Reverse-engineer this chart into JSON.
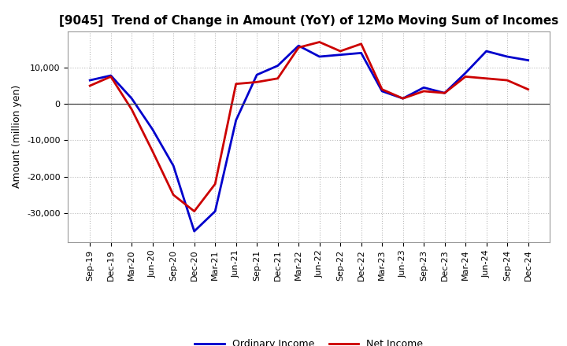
{
  "title": "[9045]  Trend of Change in Amount (YoY) of 12Mo Moving Sum of Incomes",
  "ylabel": "Amount (million yen)",
  "x_labels": [
    "Sep-19",
    "Dec-19",
    "Mar-20",
    "Jun-20",
    "Sep-20",
    "Dec-20",
    "Mar-21",
    "Jun-21",
    "Sep-21",
    "Dec-21",
    "Mar-22",
    "Jun-22",
    "Sep-22",
    "Dec-22",
    "Mar-23",
    "Jun-23",
    "Sep-23",
    "Dec-23",
    "Mar-24",
    "Jun-24",
    "Sep-24",
    "Dec-24"
  ],
  "ordinary_income": [
    6500,
    7800,
    1500,
    -7000,
    -17000,
    -35000,
    -29500,
    -4500,
    8000,
    10500,
    16000,
    13000,
    13500,
    14000,
    3500,
    1500,
    4500,
    3000,
    8500,
    14500,
    13000,
    12000
  ],
  "net_income": [
    5000,
    7500,
    -1500,
    -13000,
    -25000,
    -29500,
    -22000,
    5500,
    6000,
    7000,
    15500,
    17000,
    14500,
    16500,
    4000,
    1500,
    3500,
    3000,
    7500,
    7000,
    6500,
    4000
  ],
  "ordinary_color": "#0000cc",
  "net_color": "#cc0000",
  "ylim": [
    -38000,
    20000
  ],
  "yticks": [
    -30000,
    -20000,
    -10000,
    0,
    10000
  ],
  "background_color": "#ffffff",
  "grid_color": "#bbbbbb",
  "legend_labels": [
    "Ordinary Income",
    "Net Income"
  ],
  "title_fontsize": 11,
  "ylabel_fontsize": 9,
  "tick_fontsize": 8,
  "legend_fontsize": 9
}
